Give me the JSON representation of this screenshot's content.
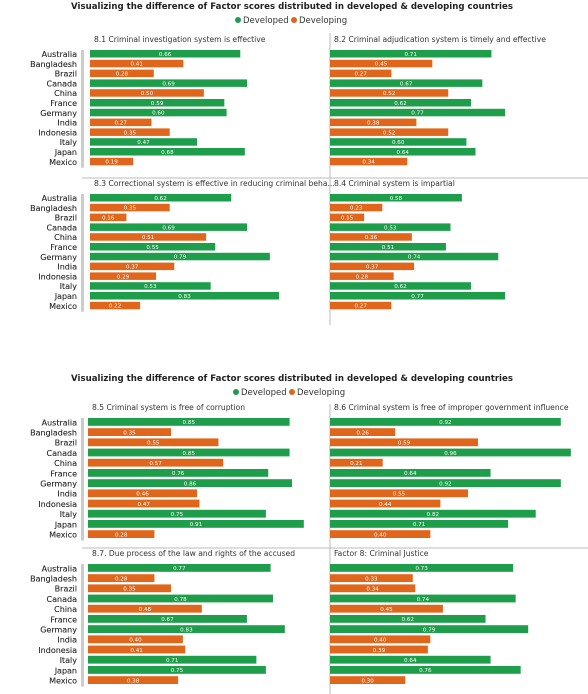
{
  "dashboards": [
    {
      "title": "Visualizing the difference of Factor scores distributed in developed & developing countries",
      "legend": {
        "developed": "Developed",
        "developing": "Developing"
      }
    },
    {
      "title": "Visualizing the difference of Factor scores distributed in developed & developing countries",
      "legend": {
        "developed": "Developed",
        "developing": "Developing"
      }
    }
  ],
  "colors": {
    "developed": "#1e9e4a",
    "developing": "#e0661b",
    "scrollbar": "#cccccc",
    "divider": "#bbbbbb"
  },
  "chart_data": [
    {
      "type": "bar",
      "title": "8.1 Criminal investigation system is effective",
      "categories": [
        "Australia",
        "Bangladesh",
        "Brazil",
        "Canada",
        "China",
        "France",
        "Germany",
        "India",
        "Indonesia",
        "Italy",
        "Japan",
        "Mexico"
      ],
      "groups": [
        "developed",
        "developing",
        "developing",
        "developed",
        "developing",
        "developed",
        "developed",
        "developing",
        "developing",
        "developed",
        "developed",
        "developing"
      ],
      "values": [
        0.66,
        0.41,
        0.28,
        0.69,
        0.5,
        0.59,
        0.6,
        0.27,
        0.35,
        0.47,
        0.68,
        0.19
      ]
    },
    {
      "type": "bar",
      "title": "8.2 Criminal adjudication system is timely and effective",
      "categories": [
        "Australia",
        "Bangladesh",
        "Brazil",
        "Canada",
        "China",
        "France",
        "Germany",
        "India",
        "Indonesia",
        "Italy",
        "Japan",
        "Mexico"
      ],
      "groups": [
        "developed",
        "developing",
        "developing",
        "developed",
        "developing",
        "developed",
        "developed",
        "developing",
        "developing",
        "developed",
        "developed",
        "developing"
      ],
      "values": [
        0.71,
        0.45,
        0.27,
        0.67,
        0.52,
        0.62,
        0.77,
        0.38,
        0.52,
        0.6,
        0.64,
        0.34
      ]
    },
    {
      "type": "bar",
      "title": "8.3 Correctional system is effective in reducing criminal beha...",
      "categories": [
        "Australia",
        "Bangladesh",
        "Brazil",
        "Canada",
        "China",
        "France",
        "Germany",
        "India",
        "Indonesia",
        "Italy",
        "Japan",
        "Mexico"
      ],
      "groups": [
        "developed",
        "developing",
        "developing",
        "developed",
        "developing",
        "developed",
        "developed",
        "developing",
        "developing",
        "developed",
        "developed",
        "developing"
      ],
      "values": [
        0.62,
        0.35,
        0.16,
        0.69,
        0.51,
        0.55,
        0.79,
        0.37,
        0.29,
        0.53,
        0.83,
        0.22
      ]
    },
    {
      "type": "bar",
      "title": "8.4 Criminal system is impartial",
      "categories": [
        "Australia",
        "Bangladesh",
        "Brazil",
        "Canada",
        "China",
        "France",
        "Germany",
        "India",
        "Indonesia",
        "Italy",
        "Japan",
        "Mexico"
      ],
      "groups": [
        "developed",
        "developing",
        "developing",
        "developed",
        "developing",
        "developed",
        "developed",
        "developing",
        "developing",
        "developed",
        "developed",
        "developing"
      ],
      "values": [
        0.58,
        0.23,
        0.15,
        0.53,
        0.36,
        0.51,
        0.74,
        0.37,
        0.28,
        0.62,
        0.77,
        0.27
      ]
    },
    {
      "type": "bar",
      "title": "8.5 Criminal system is free of corruption",
      "categories": [
        "Australia",
        "Bangladesh",
        "Brazil",
        "Canada",
        "China",
        "France",
        "Germany",
        "India",
        "Indonesia",
        "Italy",
        "Japan",
        "Mexico"
      ],
      "groups": [
        "developed",
        "developing",
        "developing",
        "developed",
        "developing",
        "developed",
        "developed",
        "developing",
        "developing",
        "developed",
        "developed",
        "developing"
      ],
      "values": [
        0.85,
        0.35,
        0.55,
        0.85,
        0.57,
        0.76,
        0.86,
        0.46,
        0.47,
        0.75,
        0.91,
        0.28
      ]
    },
    {
      "type": "bar",
      "title": "8.6 Criminal system is free of improper government influence",
      "categories": [
        "Australia",
        "Bangladesh",
        "Brazil",
        "Canada",
        "China",
        "France",
        "Germany",
        "India",
        "Indonesia",
        "Italy",
        "Japan",
        "Mexico"
      ],
      "groups": [
        "developed",
        "developing",
        "developing",
        "developed",
        "developing",
        "developed",
        "developed",
        "developing",
        "developing",
        "developed",
        "developed",
        "developing"
      ],
      "values": [
        0.92,
        0.26,
        0.59,
        0.96,
        0.21,
        0.64,
        0.92,
        0.55,
        0.44,
        0.82,
        0.71,
        0.4
      ]
    },
    {
      "type": "bar",
      "title": "8.7. Due process of the law and rights of the accused",
      "categories": [
        "Australia",
        "Bangladesh",
        "Brazil",
        "Canada",
        "China",
        "France",
        "Germany",
        "India",
        "Indonesia",
        "Italy",
        "Japan",
        "Mexico"
      ],
      "groups": [
        "developed",
        "developing",
        "developing",
        "developed",
        "developing",
        "developed",
        "developed",
        "developing",
        "developing",
        "developed",
        "developed",
        "developing"
      ],
      "values": [
        0.77,
        0.28,
        0.35,
        0.78,
        0.48,
        0.67,
        0.83,
        0.4,
        0.41,
        0.71,
        0.75,
        0.38
      ]
    },
    {
      "type": "bar",
      "title": "Factor 8: Criminal Justice",
      "categories": [
        "Australia",
        "Bangladesh",
        "Brazil",
        "Canada",
        "China",
        "France",
        "Germany",
        "India",
        "Indonesia",
        "Italy",
        "Japan",
        "Mexico"
      ],
      "groups": [
        "developed",
        "developing",
        "developing",
        "developed",
        "developing",
        "developed",
        "developed",
        "developing",
        "developing",
        "developed",
        "developed",
        "developing"
      ],
      "values": [
        0.73,
        0.33,
        0.34,
        0.74,
        0.45,
        0.62,
        0.79,
        0.4,
        0.39,
        0.64,
        0.76,
        0.3
      ]
    }
  ]
}
